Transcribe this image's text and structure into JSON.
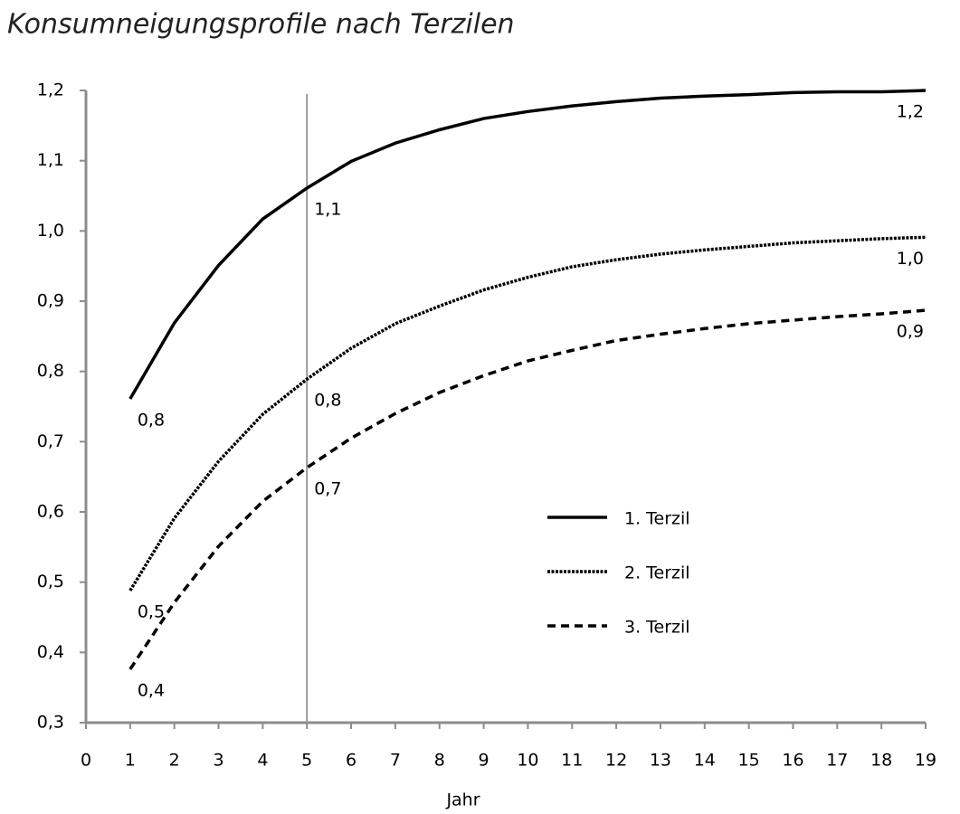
{
  "chart_data": {
    "type": "line",
    "title": "Konsumneigungsprofile nach Terzilen",
    "xlabel": "Jahr",
    "x": [
      1,
      2,
      3,
      4,
      5,
      6,
      7,
      8,
      9,
      10,
      11,
      12,
      13,
      14,
      15,
      16,
      17,
      18,
      19
    ],
    "series": [
      {
        "name": "1. Terzil",
        "color": "#000000",
        "line_style": "solid",
        "values": [
          0.761,
          0.869,
          0.951,
          1.017,
          1.061,
          1.099,
          1.125,
          1.144,
          1.16,
          1.17,
          1.178,
          1.184,
          1.189,
          1.192,
          1.194,
          1.197,
          1.198,
          1.198,
          1.2
        ],
        "value_labels": [
          "0,8",
          null,
          null,
          null,
          "1,1",
          null,
          null,
          null,
          null,
          null,
          null,
          null,
          null,
          null,
          null,
          null,
          null,
          null,
          "1,2"
        ]
      },
      {
        "name": "2. Terzil",
        "color": "#000000",
        "line_style": "dotted",
        "values": [
          0.488,
          0.591,
          0.672,
          0.739,
          0.789,
          0.833,
          0.868,
          0.893,
          0.916,
          0.934,
          0.949,
          0.959,
          0.967,
          0.973,
          0.978,
          0.983,
          0.986,
          0.989,
          0.991
        ],
        "value_labels": [
          "0,5",
          null,
          null,
          null,
          "0,8",
          null,
          null,
          null,
          null,
          null,
          null,
          null,
          null,
          null,
          null,
          null,
          null,
          null,
          "1,0"
        ]
      },
      {
        "name": "3. Terzil",
        "color": "#000000",
        "line_style": "dashed",
        "values": [
          0.376,
          0.471,
          0.551,
          0.615,
          0.663,
          0.705,
          0.74,
          0.77,
          0.794,
          0.815,
          0.83,
          0.844,
          0.853,
          0.861,
          0.868,
          0.873,
          0.878,
          0.882,
          0.887
        ],
        "value_labels": [
          "0,4",
          null,
          null,
          null,
          "0,7",
          null,
          null,
          null,
          null,
          null,
          null,
          null,
          null,
          null,
          null,
          null,
          null,
          null,
          "0,9"
        ]
      }
    ],
    "xlim": [
      0,
      19
    ],
    "xticks": [
      0,
      1,
      2,
      3,
      4,
      5,
      6,
      7,
      8,
      9,
      10,
      11,
      12,
      13,
      14,
      15,
      16,
      17,
      18,
      19
    ],
    "ylim": [
      0.3,
      1.2
    ],
    "yticks": [
      {
        "value": 0.3,
        "label": "0,3"
      },
      {
        "value": 0.4,
        "label": "0,4"
      },
      {
        "value": 0.5,
        "label": "0,5"
      },
      {
        "value": 0.6,
        "label": "0,6"
      },
      {
        "value": 0.7,
        "label": "0,7"
      },
      {
        "value": 0.8,
        "label": "0,8"
      },
      {
        "value": 0.9,
        "label": "0,9"
      },
      {
        "value": 1.0,
        "label": "1,0"
      },
      {
        "value": 1.1,
        "label": "1,1"
      },
      {
        "value": 1.2,
        "label": "1,2"
      }
    ],
    "vline_x": 5,
    "vline_color": "#999999",
    "axis_color": "#8c8c8c",
    "grid": false,
    "legend_position": "lower-right"
  }
}
